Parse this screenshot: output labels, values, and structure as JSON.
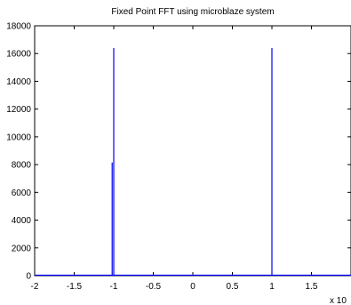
{
  "chart_data": {
    "type": "line",
    "title": "Fixed Point FFT using microblaze system",
    "xlabel": "",
    "ylabel": "",
    "xlim": [
      -2,
      2
    ],
    "ylim": [
      0,
      18000
    ],
    "x_ticks": [
      -2,
      -1.5,
      -1,
      -0.5,
      0,
      0.5,
      1,
      1.5
    ],
    "x_tick_labels": [
      "-2",
      "-1.5",
      "-1",
      "-0.5",
      "0",
      "0.5",
      "1",
      "1.5"
    ],
    "y_ticks": [
      0,
      2000,
      4000,
      6000,
      8000,
      10000,
      12000,
      14000,
      16000,
      18000
    ],
    "y_tick_labels": [
      "0",
      "2000",
      "4000",
      "6000",
      "8000",
      "10000",
      "12000",
      "14000",
      "16000",
      "18000"
    ],
    "x_exponent_label": "x 10",
    "grid": false,
    "color": "#0000ff",
    "series": [
      {
        "x": [
          -2,
          -1.02,
          -1.02,
          -1.02,
          -1.0,
          -1.0,
          -1.0,
          -0.98,
          0.98,
          1.0,
          1.0,
          1.0,
          1.02,
          2
        ],
        "y": [
          30,
          30,
          8150,
          30,
          30,
          16400,
          30,
          30,
          30,
          30,
          16400,
          30,
          30,
          30
        ]
      }
    ]
  }
}
